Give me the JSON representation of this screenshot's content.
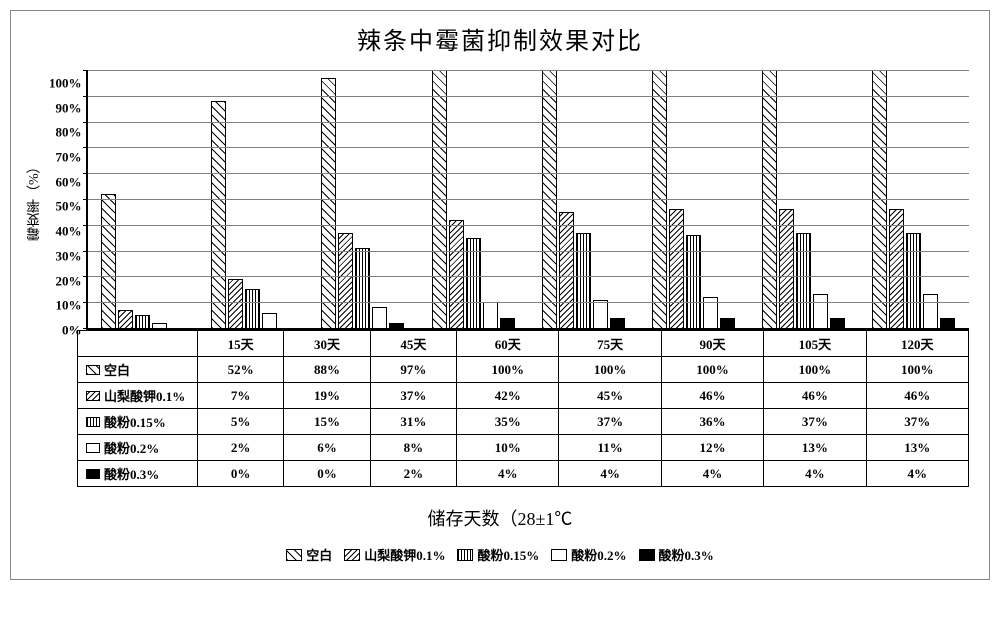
{
  "title": "辣条中霉菌抑制效果对比",
  "y_axis_label": "霉变率（%）",
  "x_axis_label": "储存天数（28±1℃",
  "y_ticks": [
    "100%",
    "90%",
    "80%",
    "70%",
    "60%",
    "50%",
    "40%",
    "30%",
    "20%",
    "10%",
    "0%"
  ],
  "y_max": 100,
  "categories": [
    "15天",
    "30天",
    "45天",
    "60天",
    "75天",
    "90天",
    "105天",
    "120天"
  ],
  "series": [
    {
      "key": "blank",
      "label": "空白",
      "pattern": "pat-blank",
      "values": [
        52,
        88,
        97,
        100,
        100,
        100,
        100,
        100
      ]
    },
    {
      "key": "sorb",
      "label": "山梨酸钾0.1%",
      "pattern": "pat-sorb",
      "values": [
        7,
        19,
        37,
        42,
        45,
        46,
        46,
        46
      ]
    },
    {
      "key": "acid15",
      "label": "酸粉0.15%",
      "pattern": "pat-acid15",
      "values": [
        5,
        15,
        31,
        35,
        37,
        36,
        37,
        37
      ]
    },
    {
      "key": "acid20",
      "label": "酸粉0.2%",
      "pattern": "pat-acid20",
      "values": [
        2,
        6,
        8,
        10,
        11,
        12,
        13,
        13
      ]
    },
    {
      "key": "acid30",
      "label": "酸粉0.3%",
      "pattern": "pat-acid30",
      "values": [
        0,
        0,
        2,
        4,
        4,
        4,
        4,
        4
      ]
    }
  ],
  "grid_color": "#808080",
  "axis_color": "#000000",
  "bg_color": "#ffffff"
}
